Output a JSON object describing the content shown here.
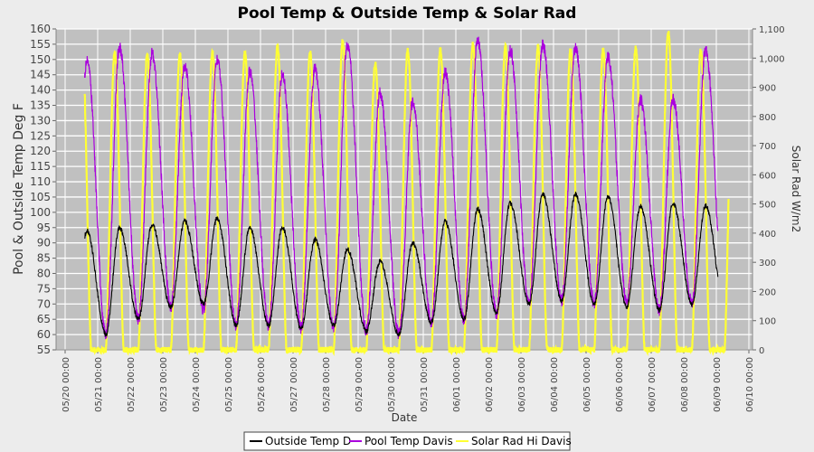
{
  "chart_data": {
    "type": "line",
    "title": "Pool Temp & Outside Temp & Solar Rad",
    "xlabel": "Date",
    "ylabel": "Pool & Outside Temp Deg F",
    "ylabel_right": "Solar Rad W/m2",
    "ylim": [
      55,
      160
    ],
    "ylim_right": [
      0,
      1100
    ],
    "y_ticks": [
      55,
      60,
      65,
      70,
      75,
      80,
      85,
      90,
      95,
      100,
      105,
      110,
      115,
      120,
      125,
      130,
      135,
      140,
      145,
      150,
      155,
      160
    ],
    "y_right_ticks": [
      0,
      100,
      200,
      300,
      400,
      500,
      600,
      700,
      800,
      900,
      1000,
      1100
    ],
    "y_right_tick_labels": [
      "0",
      "100",
      "200",
      "300",
      "400",
      "500",
      "600",
      "700",
      "800",
      "900",
      "1,000",
      "1,100"
    ],
    "x_ticks": [
      "05/20 00:00",
      "05/21 00:00",
      "05/22 00:00",
      "05/23 00:00",
      "05/24 00:00",
      "05/25 00:00",
      "05/26 00:00",
      "05/27 00:00",
      "05/28 00:00",
      "05/29 00:00",
      "05/30 00:00",
      "05/31 00:00",
      "06/01 00:00",
      "06/02 00:00",
      "06/03 00:00",
      "06/04 00:00",
      "06/05 00:00",
      "06/06 00:00",
      "06/07 00:00",
      "06/08 00:00",
      "06/09 00:00",
      "06/10 00:00"
    ],
    "x_start": "05/20 00:00",
    "grid": true,
    "legend_position": "bottom",
    "series": [
      {
        "name": "Outside Temp D",
        "color": "#000000",
        "axis": "left",
        "daily_max": [
          94,
          95,
          96,
          97,
          98,
          95,
          95,
          91,
          88,
          84,
          90,
          97,
          101,
          103,
          106,
          106,
          105,
          102,
          103,
          102
        ],
        "daily_min": [
          60,
          60,
          65,
          69,
          70,
          63,
          63,
          62,
          63,
          61,
          60,
          64,
          65,
          67,
          70,
          71,
          70,
          69,
          68,
          70
        ]
      },
      {
        "name": "Pool Temp Davis",
        "color": "#aa00dd",
        "axis": "left",
        "daily_max": [
          150,
          154,
          152,
          148,
          150,
          146,
          145,
          147,
          155,
          139,
          136,
          146,
          156,
          153,
          155,
          154,
          151,
          137,
          137,
          153
        ],
        "daily_min": [
          60,
          60,
          65,
          69,
          68,
          63,
          63,
          62,
          62,
          61,
          60,
          64,
          65,
          67,
          70,
          71,
          70,
          71,
          68,
          70
        ]
      },
      {
        "name": "Solar Rad Hi Davis",
        "color": "#ffff33",
        "axis": "right",
        "daily_max": [
          1030,
          1020,
          1015,
          1010,
          1020,
          1020,
          1040,
          1020,
          1060,
          980,
          1030,
          1030,
          1050,
          1040,
          1040,
          1030,
          1030,
          1035,
          1090,
          1030
        ],
        "x_range": [
          "05/20 14:00",
          "06/09 09:00"
        ]
      }
    ]
  }
}
